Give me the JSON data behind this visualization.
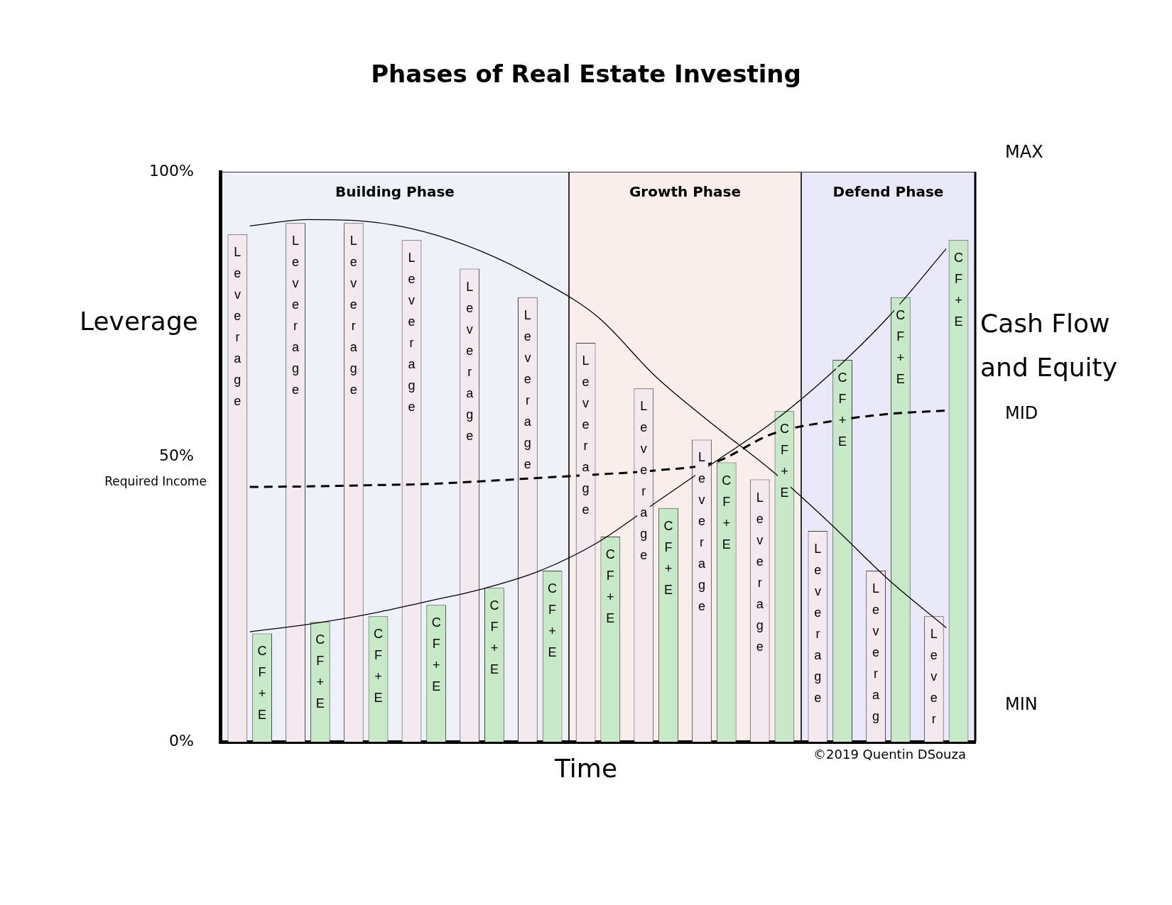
{
  "chart_data": {
    "type": "bar",
    "title": "Phases of Real Estate Investing",
    "xlabel": "Time",
    "ylabel": "Leverage",
    "y2label": "Cash Flow and Equity",
    "categories": [
      null,
      null,
      null,
      null,
      null,
      null,
      null,
      null,
      null,
      null,
      null,
      null,
      null
    ],
    "ylim": [
      0,
      100
    ],
    "yticks": [
      {
        "value": 0,
        "label": "0%"
      },
      {
        "value": 50,
        "label": "50%"
      },
      {
        "value": 100,
        "label": "100%"
      }
    ],
    "tick_labels": "y",
    "legend": false,
    "grid": false,
    "marker": "none",
    "series": [
      {
        "color": "#f3e9ef",
        "values": [
          89,
          91,
          91,
          88,
          83,
          78,
          70,
          62,
          53,
          46,
          37,
          30,
          22
        ],
        "value_labels": [
          "Leverage",
          "Leverage",
          "Leverage",
          "Leverage",
          "Leverage",
          "Leverage",
          "Leverage",
          "Leverage",
          "Leverage",
          "Leverage",
          "Leverage",
          "Leverag",
          "Lever"
        ]
      },
      {
        "color": "#c8e9c8",
        "values": [
          19,
          21,
          22,
          24,
          27,
          30,
          36,
          41,
          49,
          58,
          67,
          78,
          88
        ],
        "value_labels": [
          "CF+E",
          "CF+E",
          "CF+E",
          "CF+E",
          "CF+E",
          "CF+E",
          "CF+E",
          "CF+E",
          "CF+E",
          "CF+E",
          "CF+E",
          "CF+E",
          "CF+E"
        ]
      },
      {
        "type": "line",
        "color": "#000000",
        "values": [
          90.5,
          91.6,
          91.3,
          89.5,
          86,
          81,
          74.5,
          64,
          55.5,
          47.5,
          38.3,
          28.5,
          20
        ]
      },
      {
        "type": "line",
        "color": "#000000",
        "values": [
          19.3,
          20.6,
          22.3,
          24.5,
          26.8,
          30,
          35,
          42,
          49,
          56,
          64.5,
          74.5,
          86.5
        ]
      },
      {
        "type": "line",
        "name": "Required Income",
        "color": "#000000",
        "line_style": "dashed",
        "values": [
          44.7,
          44.8,
          45,
          45.2,
          45.7,
          46.3,
          46.9,
          47.6,
          49,
          54,
          56.2,
          57.5,
          58.1
        ]
      }
    ],
    "annotations": [
      "Building Phase",
      "Growth Phase",
      "Defend Phase",
      "MAX",
      "MID",
      "MIN",
      "©2019 Quentin DSouza"
    ]
  }
}
